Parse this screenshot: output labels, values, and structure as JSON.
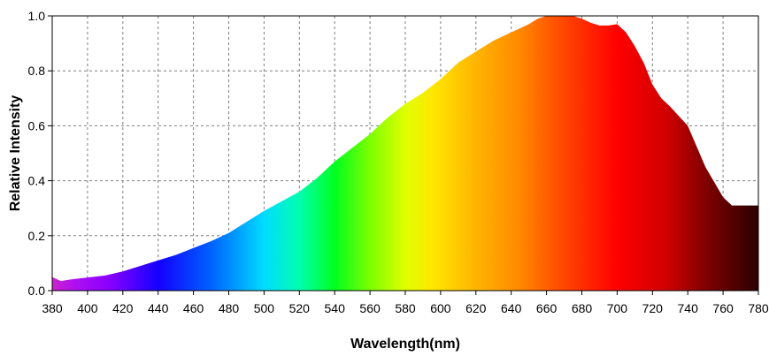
{
  "chart_data": {
    "type": "area",
    "title": "",
    "xlabel": "Wavelength(nm)",
    "ylabel": "Relative Intensity",
    "xlim": [
      380,
      780
    ],
    "ylim": [
      0,
      1.0
    ],
    "grid": true,
    "x_ticks": [
      "380",
      "400",
      "420",
      "440",
      "460",
      "480",
      "500",
      "520",
      "540",
      "560",
      "580",
      "600",
      "620",
      "640",
      "660",
      "680",
      "700",
      "720",
      "740",
      "760",
      "780"
    ],
    "y_ticks": [
      "0.0",
      "0.2",
      "0.4",
      "0.6",
      "0.8",
      "1.0"
    ],
    "fill": "visible-spectrum gradient",
    "series": [
      {
        "x": [
          380,
          383,
          385,
          390,
          400,
          410,
          420,
          430,
          440,
          450,
          460,
          470,
          480,
          490,
          500,
          510,
          520,
          530,
          540,
          550,
          560,
          570,
          580,
          590,
          600,
          610,
          620,
          630,
          640,
          650,
          655,
          660,
          665,
          670,
          675,
          680,
          685,
          690,
          695,
          700,
          705,
          710,
          715,
          720,
          725,
          730,
          740,
          750,
          760,
          765,
          770,
          775,
          780
        ],
        "values": [
          0.05,
          0.04,
          0.035,
          0.04,
          0.048,
          0.055,
          0.07,
          0.09,
          0.11,
          0.13,
          0.155,
          0.18,
          0.21,
          0.25,
          0.29,
          0.325,
          0.36,
          0.41,
          0.47,
          0.52,
          0.57,
          0.63,
          0.68,
          0.72,
          0.77,
          0.83,
          0.87,
          0.91,
          0.94,
          0.97,
          0.99,
          1.0,
          1.0,
          1.0,
          1.0,
          0.99,
          0.975,
          0.965,
          0.965,
          0.97,
          0.94,
          0.89,
          0.83,
          0.75,
          0.7,
          0.67,
          0.6,
          0.45,
          0.34,
          0.31,
          0.31,
          0.31,
          0.31
        ]
      }
    ]
  }
}
